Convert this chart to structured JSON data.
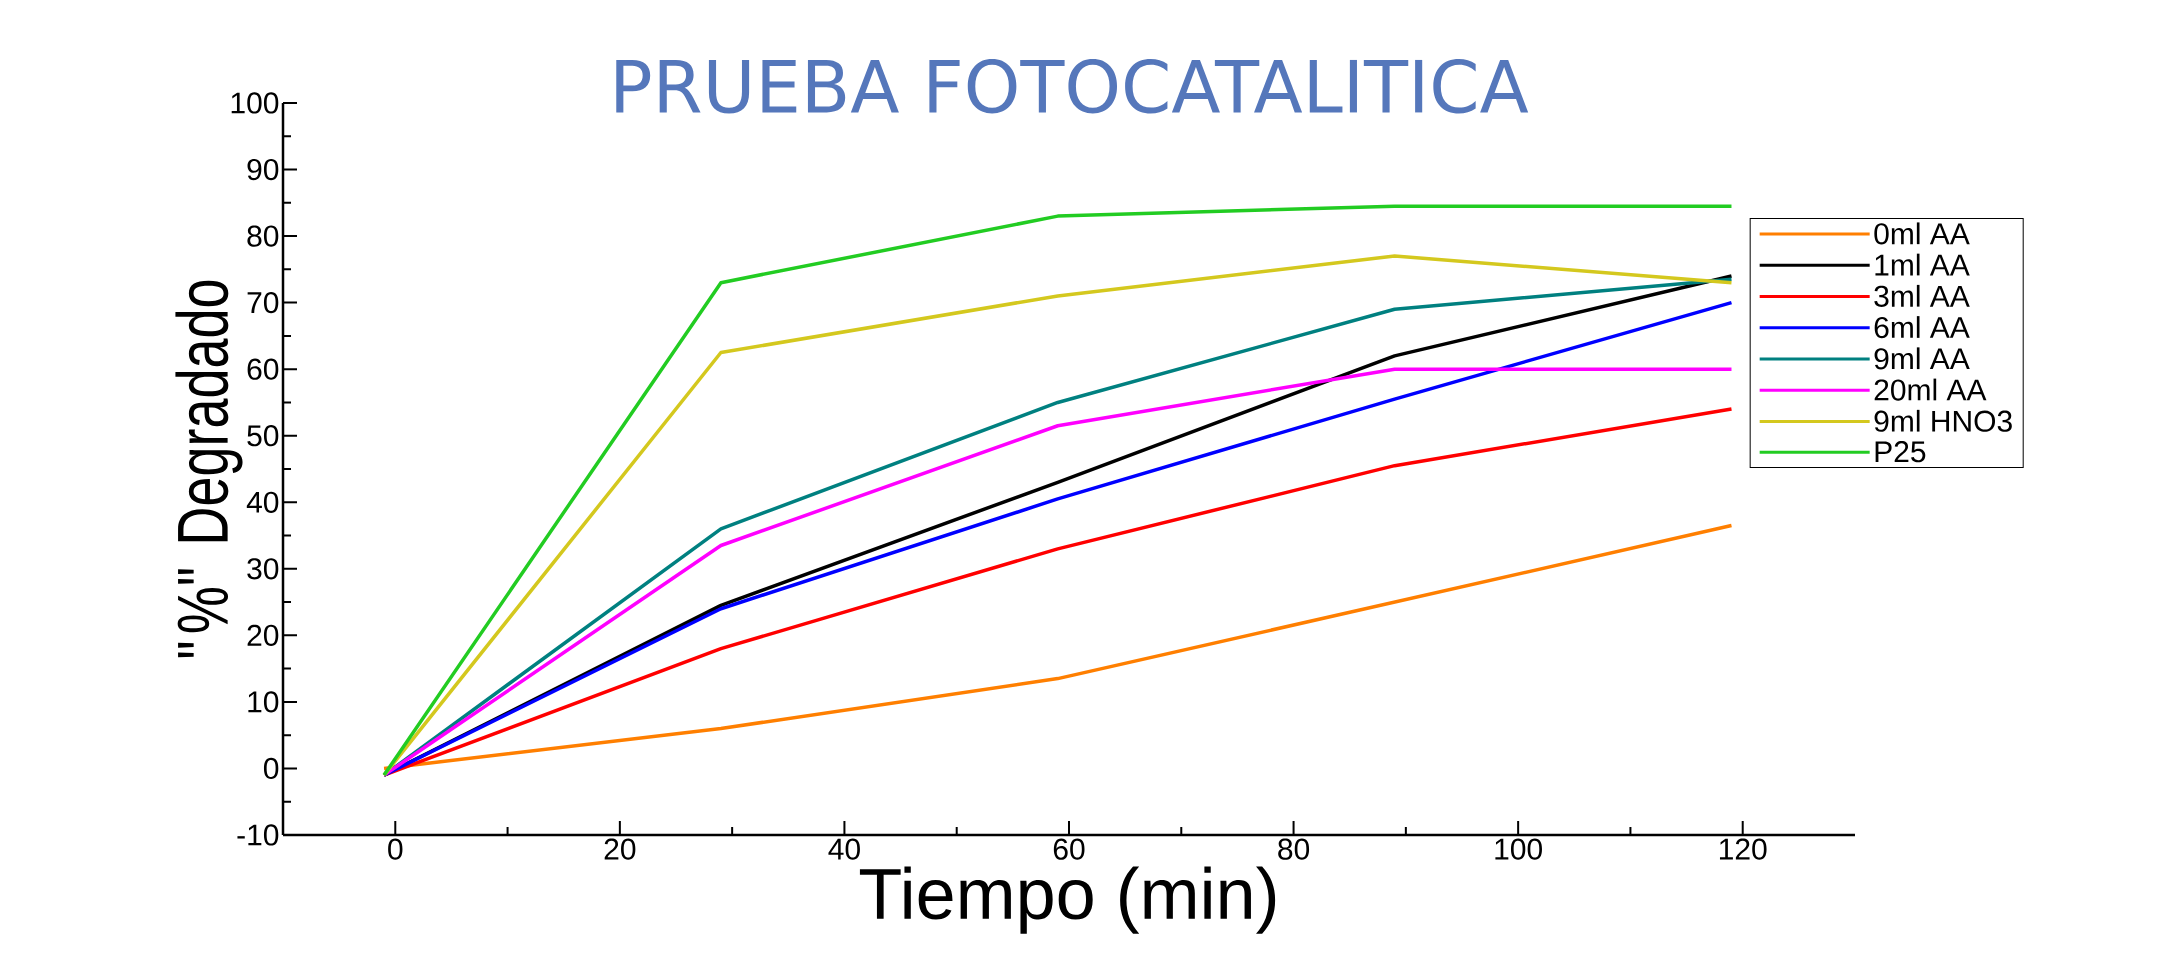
{
  "chart_data": {
    "type": "line",
    "title": "PRUEBA FOTOCATALITICA",
    "xlabel": "Tiempo (min)",
    "ylabel": "\"%\" Degradado",
    "x": [
      -1,
      29,
      59,
      89,
      119
    ],
    "series": [
      {
        "name": "0ml AA",
        "color": "#ff7f00",
        "values": [
          0,
          6,
          13.5,
          25,
          36.5
        ]
      },
      {
        "name": "1ml AA",
        "color": "#000000",
        "values": [
          -1,
          24.5,
          43,
          62,
          74
        ]
      },
      {
        "name": "3ml AA",
        "color": "#ff0000",
        "values": [
          -1,
          18,
          33,
          45.5,
          54
        ]
      },
      {
        "name": "6ml AA",
        "color": "#0000ff",
        "values": [
          -1,
          24,
          40.5,
          55.5,
          70
        ]
      },
      {
        "name": "9ml AA",
        "color": "#008080",
        "values": [
          -1,
          36,
          55,
          69,
          73.5
        ]
      },
      {
        "name": "20ml AA",
        "color": "#ff00ff",
        "values": [
          -1,
          33.5,
          51.5,
          60,
          60
        ]
      },
      {
        "name": "9ml HNO3",
        "color": "#d4c81e",
        "values": [
          -1,
          62.5,
          71,
          77,
          73
        ]
      },
      {
        "name": "P25",
        "color": "#22cc22",
        "values": [
          -1,
          73,
          83,
          84.5,
          84.5
        ]
      }
    ],
    "xlim": [
      -10,
      130
    ],
    "ylim": [
      -10,
      100
    ],
    "xticks": [
      0,
      20,
      40,
      60,
      80,
      100,
      120
    ],
    "yticks": [
      -10,
      0,
      10,
      20,
      30,
      40,
      50,
      60,
      70,
      80,
      90,
      100
    ],
    "legend": "right",
    "grid": false,
    "marker": "none",
    "line_style": "solid"
  }
}
